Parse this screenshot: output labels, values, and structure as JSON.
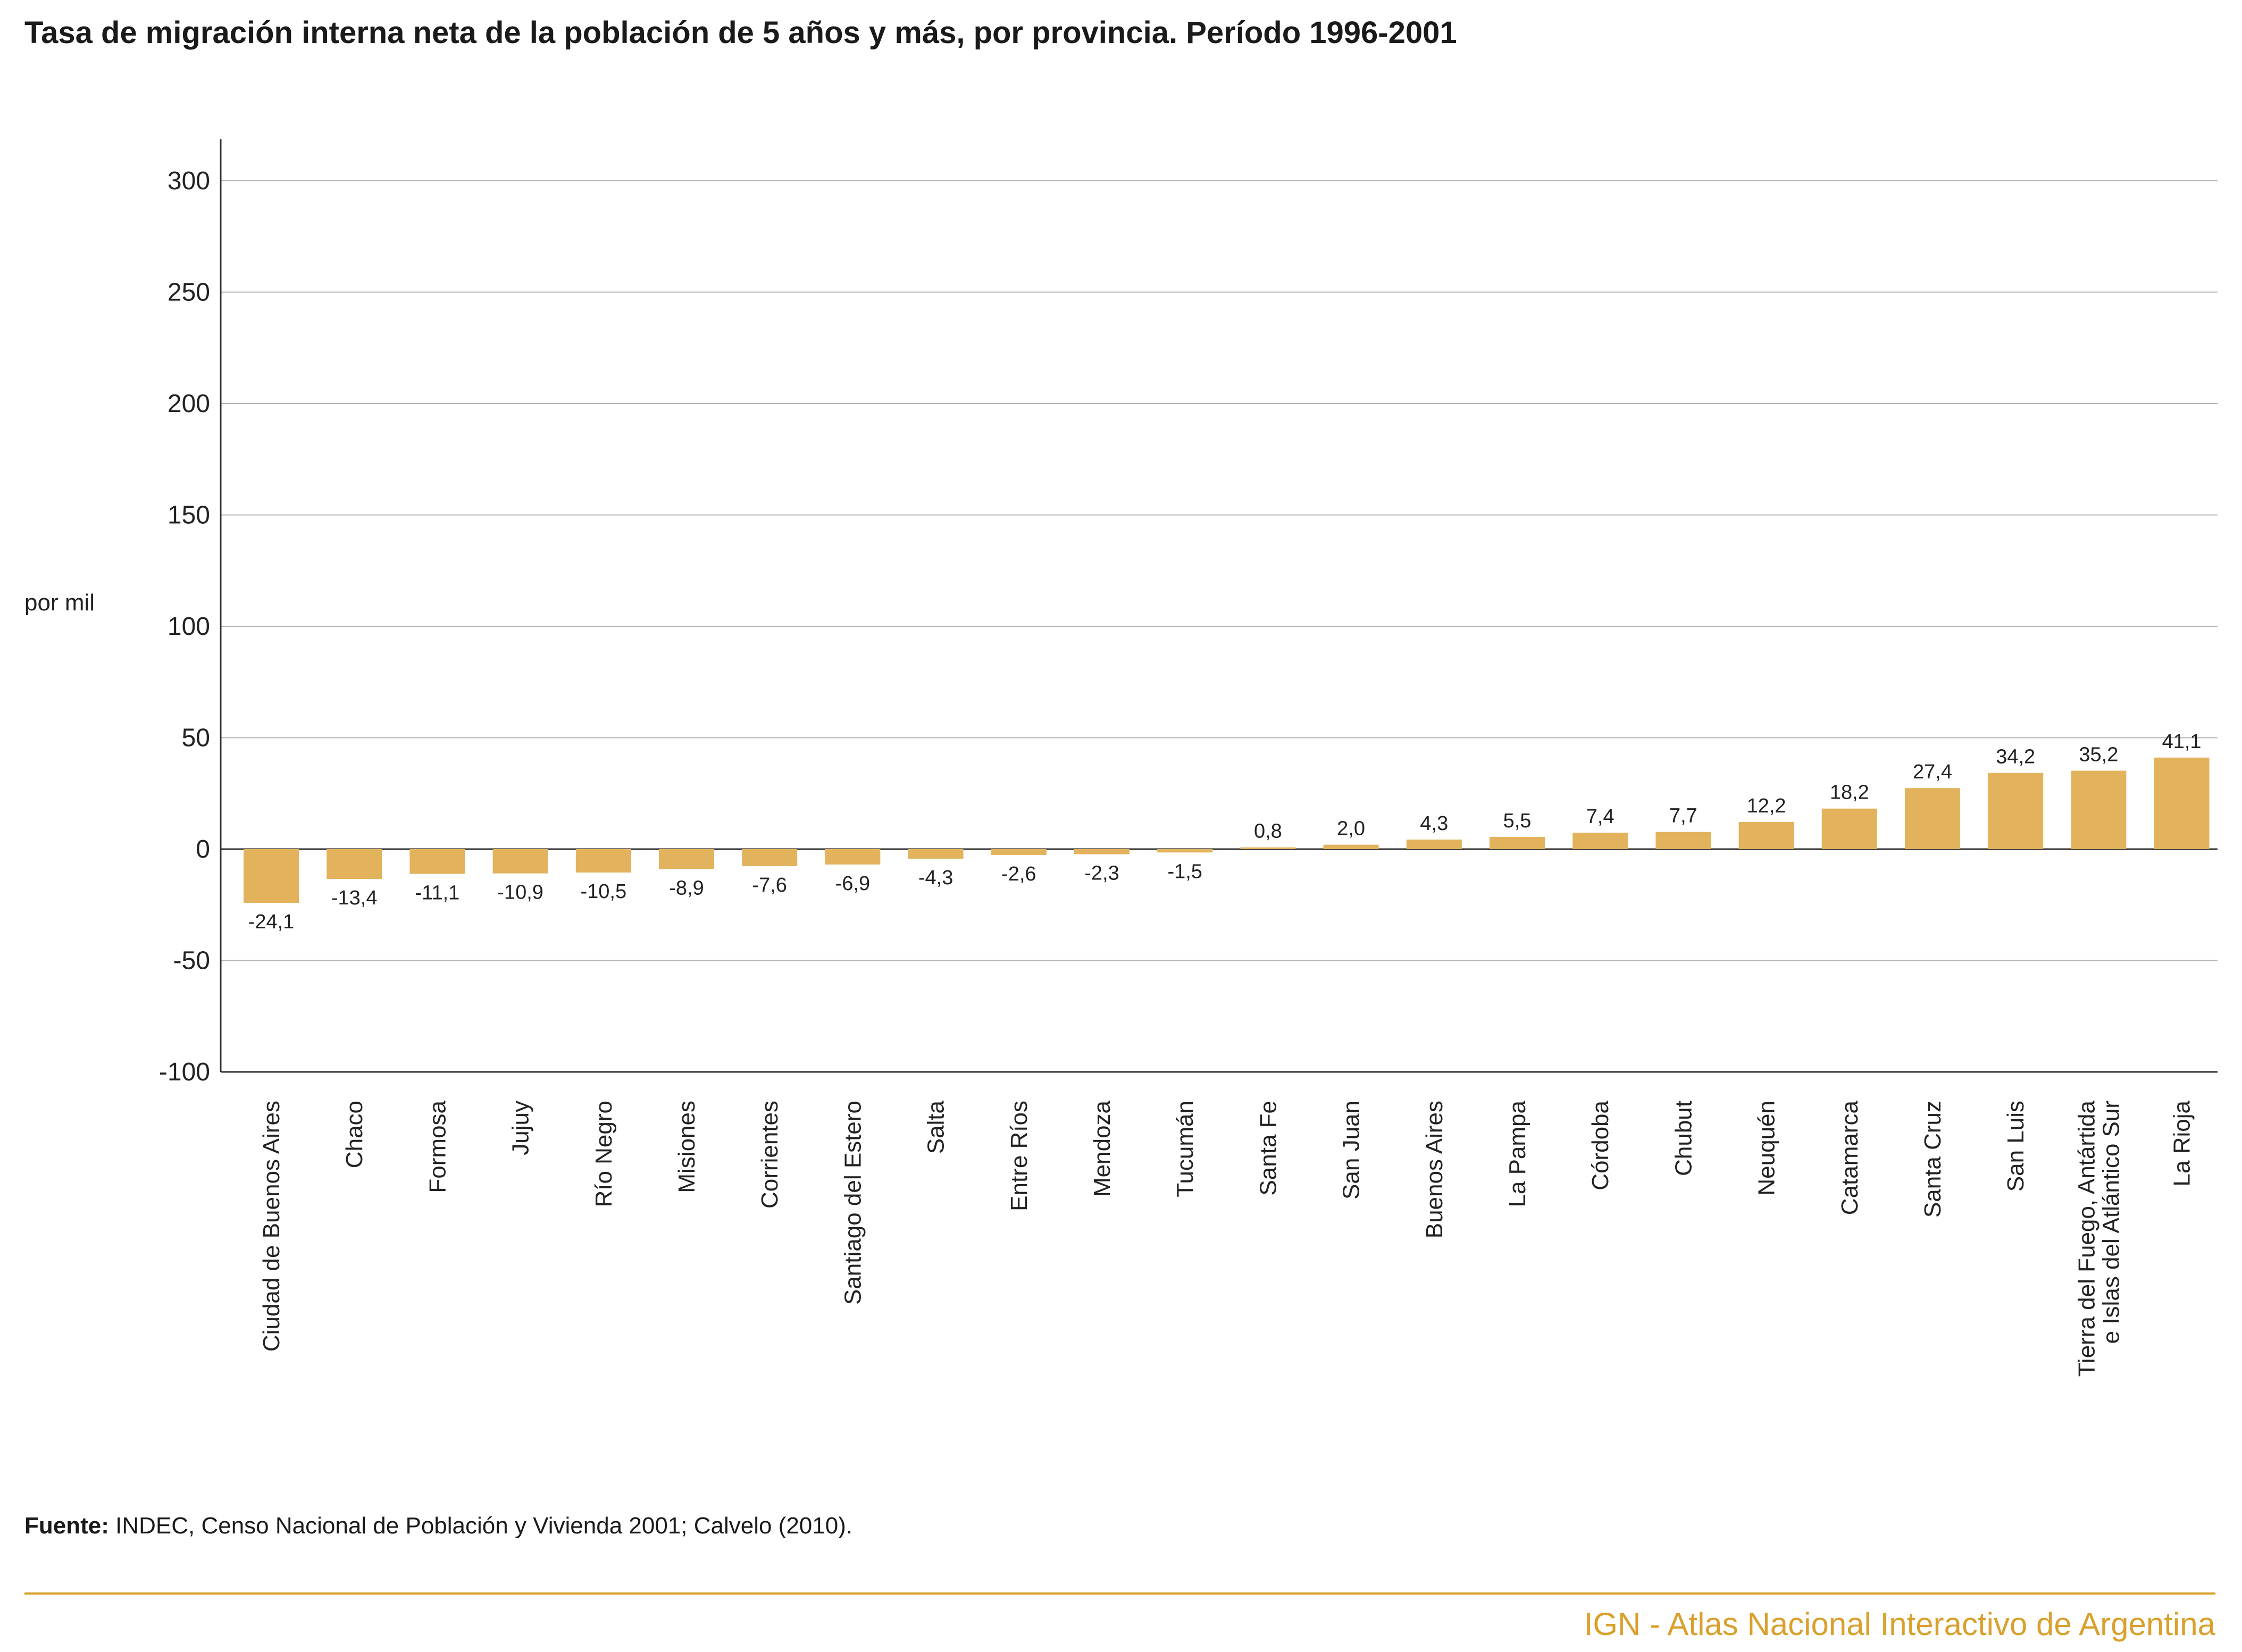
{
  "chart_data": {
    "type": "bar",
    "title": "Tasa de migración interna neta de la población de 5 años y más, por provincia. Período 1996-2001",
    "ylabel": "por mil",
    "xlabel": "",
    "ylim": [
      -100,
      320
    ],
    "yticks": [
      300,
      250,
      200,
      150,
      100,
      50,
      0,
      -50,
      -100
    ],
    "grid": true,
    "legend": "none",
    "bar_color": "#e2b35c",
    "categories": [
      "Ciudad de Buenos Aires",
      "Chaco",
      "Formosa",
      "Jujuy",
      "Río Negro",
      "Misiones",
      "Corrientes",
      "Santiago del Estero",
      "Salta",
      "Entre Ríos",
      "Mendoza",
      "Tucumán",
      "Santa Fe",
      "San Juan",
      "Buenos Aires",
      "La Pampa",
      "Córdoba",
      "Chubut",
      "Neuquén",
      "Catamarca",
      "Santa Cruz",
      "San Luis",
      "Tierra del Fuego, Antártida|e Islas del Atlántico Sur",
      "La Rioja"
    ],
    "values": [
      -24.1,
      -13.4,
      -11.1,
      -10.9,
      -10.5,
      -8.9,
      -7.6,
      -6.9,
      -4.3,
      -2.6,
      -2.3,
      -1.5,
      0.8,
      2.0,
      4.3,
      5.5,
      7.4,
      7.7,
      12.2,
      18.2,
      27.4,
      34.2,
      35.2,
      41.1
    ],
    "value_labels": [
      "-24,1",
      "-13,4",
      "-11,1",
      "-10,9",
      "-10,5",
      "-8,9",
      "-7,6",
      "-6,9",
      "-4,3",
      "-2,6",
      "-2,3",
      "-1,5",
      "0,8",
      "2,0",
      "4,3",
      "5,5",
      "7,4",
      "7,7",
      "12,2",
      "18,2",
      "27,4",
      "34,2",
      "35,2",
      "41,1"
    ]
  },
  "source": {
    "label": "Fuente:",
    "text": " INDEC, Censo Nacional de Población y Vivienda 2001; Calvelo (2010)."
  },
  "footer": {
    "brand": "IGN - Atlas Nacional Interactivo de Argentina",
    "accent_color": "#d9a02c"
  }
}
